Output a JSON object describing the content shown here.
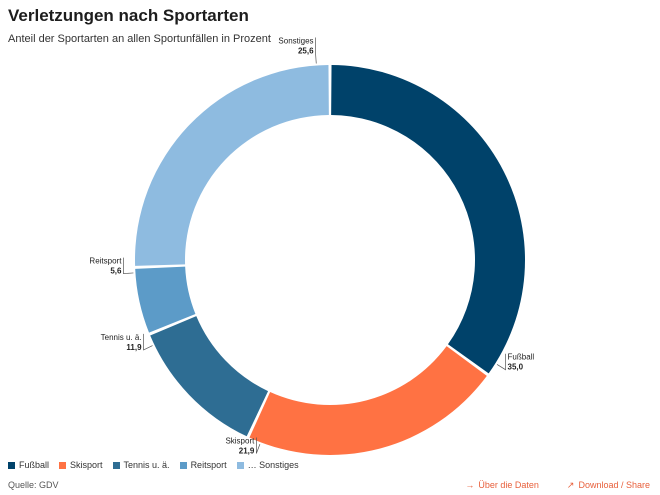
{
  "header": {
    "title": "Verletzungen nach Sportarten",
    "subtitle": "Anteil der Sportarten an allen Sportunfällen in Prozent"
  },
  "chart_data": {
    "type": "pie",
    "variant": "donut",
    "title": "Verletzungen nach Sportarten",
    "subtitle": "Anteil der Sportarten an allen Sportunfällen in Prozent",
    "unit": "Prozent",
    "categories": [
      "Fußball",
      "Skisport",
      "Tennis u. ä.",
      "Reitsport",
      "… Sonstiges"
    ],
    "labels": [
      "Fußball",
      "Skisport",
      "Tennis u. ä.",
      "Reitsport",
      "Sonstiges"
    ],
    "value_labels": [
      "35,0",
      "21,9",
      "11,9",
      "5,6",
      "25,6"
    ],
    "values": [
      35.0,
      21.9,
      11.9,
      5.6,
      25.6
    ],
    "colors": [
      "#00426a",
      "#ff7243",
      "#2e6d93",
      "#5c9bc8",
      "#8ebbe0"
    ],
    "legend_position": "bottom-left"
  },
  "footer": {
    "source": "Quelle: GDV",
    "data_link": "Über die Daten",
    "download_link": "Download / Share",
    "data_icon": "arrow-right-icon",
    "download_icon": "arrow-up-right-icon"
  }
}
